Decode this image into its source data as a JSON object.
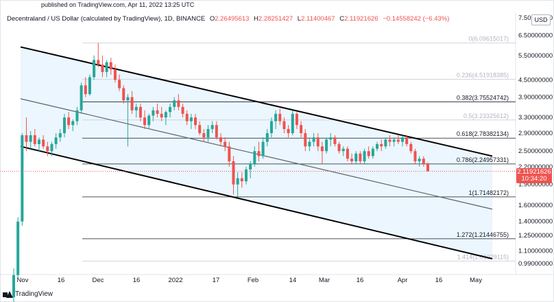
{
  "header": {
    "published": "published on TradingView.com, Apr 11, 2022 13:25 UTC"
  },
  "legend": {
    "title": "Decentraland / US Dollar (calculated by TradingView), 1D, BINANCE",
    "o_label": "O",
    "o_value": "2.26495613",
    "h_label": "H",
    "h_value": "2.28251427",
    "l_label": "L",
    "l_value": "2.11400467",
    "c_label": "C",
    "c_value": "2.11921626",
    "change": "−0.14558242 (−6.43%)"
  },
  "currency": "USD",
  "last_price": {
    "price": "2.11921626",
    "countdown": "10:34:20"
  },
  "footer": {
    "brand": "TradingView"
  },
  "colors": {
    "up": "#26a69a",
    "down": "#ef5350",
    "channel": "#000000",
    "fill": "#e3f2fd"
  },
  "chart_data": {
    "type": "candlestick",
    "title": "Decentraland / US Dollar (calculated by TradingView), 1D, BINANCE",
    "y_ticks": [
      "7.50000000",
      "6.50000000",
      "5.50000000",
      "4.50000000",
      "3.90000000",
      "3.30000000",
      "2.90000000",
      "2.50000000",
      "2.20000000",
      "1.90000000",
      "1.60000000",
      "1.40000000",
      "1.25000000",
      "1.10000000",
      "0.99000000"
    ],
    "y_tick_values": [
      7.5,
      6.5,
      5.5,
      4.5,
      3.9,
      3.3,
      2.9,
      2.5,
      2.2,
      1.9,
      1.6,
      1.4,
      1.25,
      1.1,
      0.99
    ],
    "y_scale": "log",
    "x_ticks": [
      "Nov",
      "16",
      "Dec",
      "16",
      "2022",
      "17",
      "Feb",
      "14",
      "Mar",
      "16",
      "Apr",
      "16",
      "May"
    ],
    "fib_levels": [
      {
        "ratio": "0",
        "value": "6.09615017",
        "label": "0(6.09615017)",
        "faint": true
      },
      {
        "ratio": "0.236",
        "value": "4.51918385",
        "label": "0.236(4.51918385)",
        "faint": true
      },
      {
        "ratio": "0.382",
        "value": "3.75524742",
        "label": "0.382(3.75524742)",
        "faint": false
      },
      {
        "ratio": "0.5",
        "value": "3.23325612",
        "label": "0.5(3.23325612)",
        "faint": true
      },
      {
        "ratio": "0.618",
        "value": "2.78382134",
        "label": "0.618(2.78382134)",
        "faint": false
      },
      {
        "ratio": "0.786",
        "value": "2.24957331",
        "label": "0.786(2.24957331)",
        "faint": false
      },
      {
        "ratio": "1",
        "value": "1.71482172",
        "label": "1(1.71482172)",
        "faint": false
      },
      {
        "ratio": "1.272",
        "value": "1.21446755",
        "label": "1.272(1.21446755)",
        "faint": false
      },
      {
        "ratio": "1.414",
        "value": "1.01029115",
        "label": "1.414(1.01029115)",
        "faint": true
      }
    ],
    "channel": {
      "upper": {
        "from": 5.9,
        "to": 2.4
      },
      "middle": {
        "from": 3.85,
        "to": 1.55
      },
      "lower": {
        "from": 2.6,
        "to": 1.03
      }
    },
    "candles": [
      [
        0.75,
        0.95,
        0.7,
        0.9
      ],
      [
        0.9,
        1.45,
        0.88,
        1.4
      ],
      [
        1.4,
        2.9,
        1.35,
        2.85
      ],
      [
        2.85,
        3.3,
        2.5,
        2.7
      ],
      [
        2.7,
        2.95,
        2.55,
        2.85
      ],
      [
        2.85,
        3.0,
        2.6,
        2.65
      ],
      [
        2.65,
        2.8,
        2.5,
        2.75
      ],
      [
        2.75,
        2.85,
        2.55,
        2.6
      ],
      [
        2.6,
        2.7,
        2.4,
        2.5
      ],
      [
        2.5,
        2.7,
        2.4,
        2.65
      ],
      [
        2.65,
        2.9,
        2.55,
        2.8
      ],
      [
        2.8,
        3.0,
        2.7,
        2.9
      ],
      [
        2.9,
        3.4,
        2.8,
        3.3
      ],
      [
        3.3,
        3.45,
        3.0,
        3.1
      ],
      [
        3.1,
        3.25,
        2.95,
        3.2
      ],
      [
        3.2,
        3.6,
        3.1,
        3.5
      ],
      [
        3.5,
        4.4,
        3.4,
        4.3
      ],
      [
        4.3,
        4.6,
        3.9,
        4.0
      ],
      [
        4.0,
        4.7,
        3.95,
        4.6
      ],
      [
        4.6,
        5.5,
        4.5,
        5.3
      ],
      [
        5.3,
        6.1,
        5.0,
        5.1
      ],
      [
        5.1,
        5.5,
        4.6,
        4.8
      ],
      [
        4.8,
        5.3,
        4.6,
        5.2
      ],
      [
        5.2,
        5.4,
        4.7,
        4.9
      ],
      [
        4.9,
        5.1,
        4.4,
        4.5
      ],
      [
        4.5,
        4.7,
        4.1,
        4.2
      ],
      [
        4.2,
        4.3,
        3.7,
        3.8
      ],
      [
        3.8,
        4.0,
        2.6,
        3.9
      ],
      [
        3.9,
        4.1,
        3.4,
        3.5
      ],
      [
        3.5,
        3.7,
        3.3,
        3.6
      ],
      [
        3.6,
        3.7,
        3.2,
        3.3
      ],
      [
        3.3,
        3.5,
        3.0,
        3.1
      ],
      [
        3.1,
        3.4,
        3.0,
        3.35
      ],
      [
        3.35,
        3.6,
        3.2,
        3.5
      ],
      [
        3.5,
        3.7,
        3.3,
        3.4
      ],
      [
        3.4,
        3.6,
        3.2,
        3.3
      ],
      [
        3.3,
        3.5,
        3.1,
        3.45
      ],
      [
        3.45,
        3.7,
        3.3,
        3.6
      ],
      [
        3.6,
        3.9,
        3.5,
        3.8
      ],
      [
        3.8,
        4.0,
        3.5,
        3.6
      ],
      [
        3.6,
        3.7,
        3.3,
        3.4
      ],
      [
        3.4,
        3.5,
        3.1,
        3.2
      ],
      [
        3.2,
        3.4,
        3.0,
        3.3
      ],
      [
        3.3,
        3.4,
        3.0,
        3.1
      ],
      [
        3.1,
        3.2,
        2.85,
        2.9
      ],
      [
        2.9,
        3.0,
        2.7,
        2.8
      ],
      [
        2.8,
        3.1,
        2.7,
        3.0
      ],
      [
        3.0,
        3.2,
        2.9,
        3.1
      ],
      [
        3.1,
        3.2,
        2.75,
        2.8
      ],
      [
        2.8,
        2.9,
        2.6,
        2.7
      ],
      [
        2.7,
        2.8,
        2.5,
        2.6
      ],
      [
        2.6,
        2.7,
        2.2,
        2.3
      ],
      [
        2.3,
        2.4,
        1.75,
        1.9
      ],
      [
        1.9,
        2.1,
        1.72,
        2.0
      ],
      [
        2.0,
        2.1,
        1.85,
        1.95
      ],
      [
        1.95,
        2.2,
        1.9,
        2.15
      ],
      [
        2.15,
        2.3,
        2.0,
        2.25
      ],
      [
        2.25,
        2.6,
        2.2,
        2.5
      ],
      [
        2.5,
        2.7,
        2.3,
        2.4
      ],
      [
        2.4,
        2.8,
        2.35,
        2.7
      ],
      [
        2.7,
        3.0,
        2.6,
        2.9
      ],
      [
        2.9,
        3.3,
        2.8,
        3.2
      ],
      [
        3.2,
        3.5,
        3.0,
        3.4
      ],
      [
        3.4,
        3.55,
        3.1,
        3.2
      ],
      [
        3.2,
        3.3,
        2.9,
        3.0
      ],
      [
        3.0,
        3.1,
        2.8,
        2.9
      ],
      [
        2.9,
        3.5,
        2.85,
        3.4
      ],
      [
        3.4,
        3.45,
        3.0,
        3.1
      ],
      [
        3.1,
        3.2,
        2.8,
        2.9
      ],
      [
        2.9,
        3.0,
        2.5,
        2.6
      ],
      [
        2.6,
        2.8,
        2.5,
        2.7
      ],
      [
        2.7,
        2.9,
        2.6,
        2.8
      ],
      [
        2.8,
        2.9,
        2.5,
        2.6
      ],
      [
        2.6,
        2.7,
        2.25,
        2.5
      ],
      [
        2.5,
        2.8,
        2.45,
        2.75
      ],
      [
        2.75,
        2.9,
        2.6,
        2.8
      ],
      [
        2.8,
        2.85,
        2.6,
        2.65
      ],
      [
        2.65,
        2.7,
        2.45,
        2.5
      ],
      [
        2.5,
        2.6,
        2.4,
        2.55
      ],
      [
        2.55,
        2.6,
        2.3,
        2.35
      ],
      [
        2.35,
        2.45,
        2.25,
        2.3
      ],
      [
        2.3,
        2.5,
        2.25,
        2.45
      ],
      [
        2.45,
        2.5,
        2.25,
        2.3
      ],
      [
        2.3,
        2.55,
        2.25,
        2.5
      ],
      [
        2.5,
        2.6,
        2.35,
        2.4
      ],
      [
        2.4,
        2.6,
        2.35,
        2.55
      ],
      [
        2.55,
        2.7,
        2.5,
        2.65
      ],
      [
        2.65,
        2.75,
        2.5,
        2.6
      ],
      [
        2.6,
        2.8,
        2.55,
        2.75
      ],
      [
        2.75,
        2.85,
        2.6,
        2.7
      ],
      [
        2.7,
        2.8,
        2.6,
        2.75
      ],
      [
        2.75,
        2.85,
        2.65,
        2.7
      ],
      [
        2.7,
        2.85,
        2.6,
        2.8
      ],
      [
        2.8,
        2.85,
        2.6,
        2.65
      ],
      [
        2.65,
        2.7,
        2.45,
        2.5
      ],
      [
        2.5,
        2.55,
        2.25,
        2.3
      ],
      [
        2.3,
        2.4,
        2.2,
        2.35
      ],
      [
        2.35,
        2.4,
        2.2,
        2.26
      ],
      [
        2.26,
        2.28,
        2.11,
        2.12
      ]
    ]
  }
}
